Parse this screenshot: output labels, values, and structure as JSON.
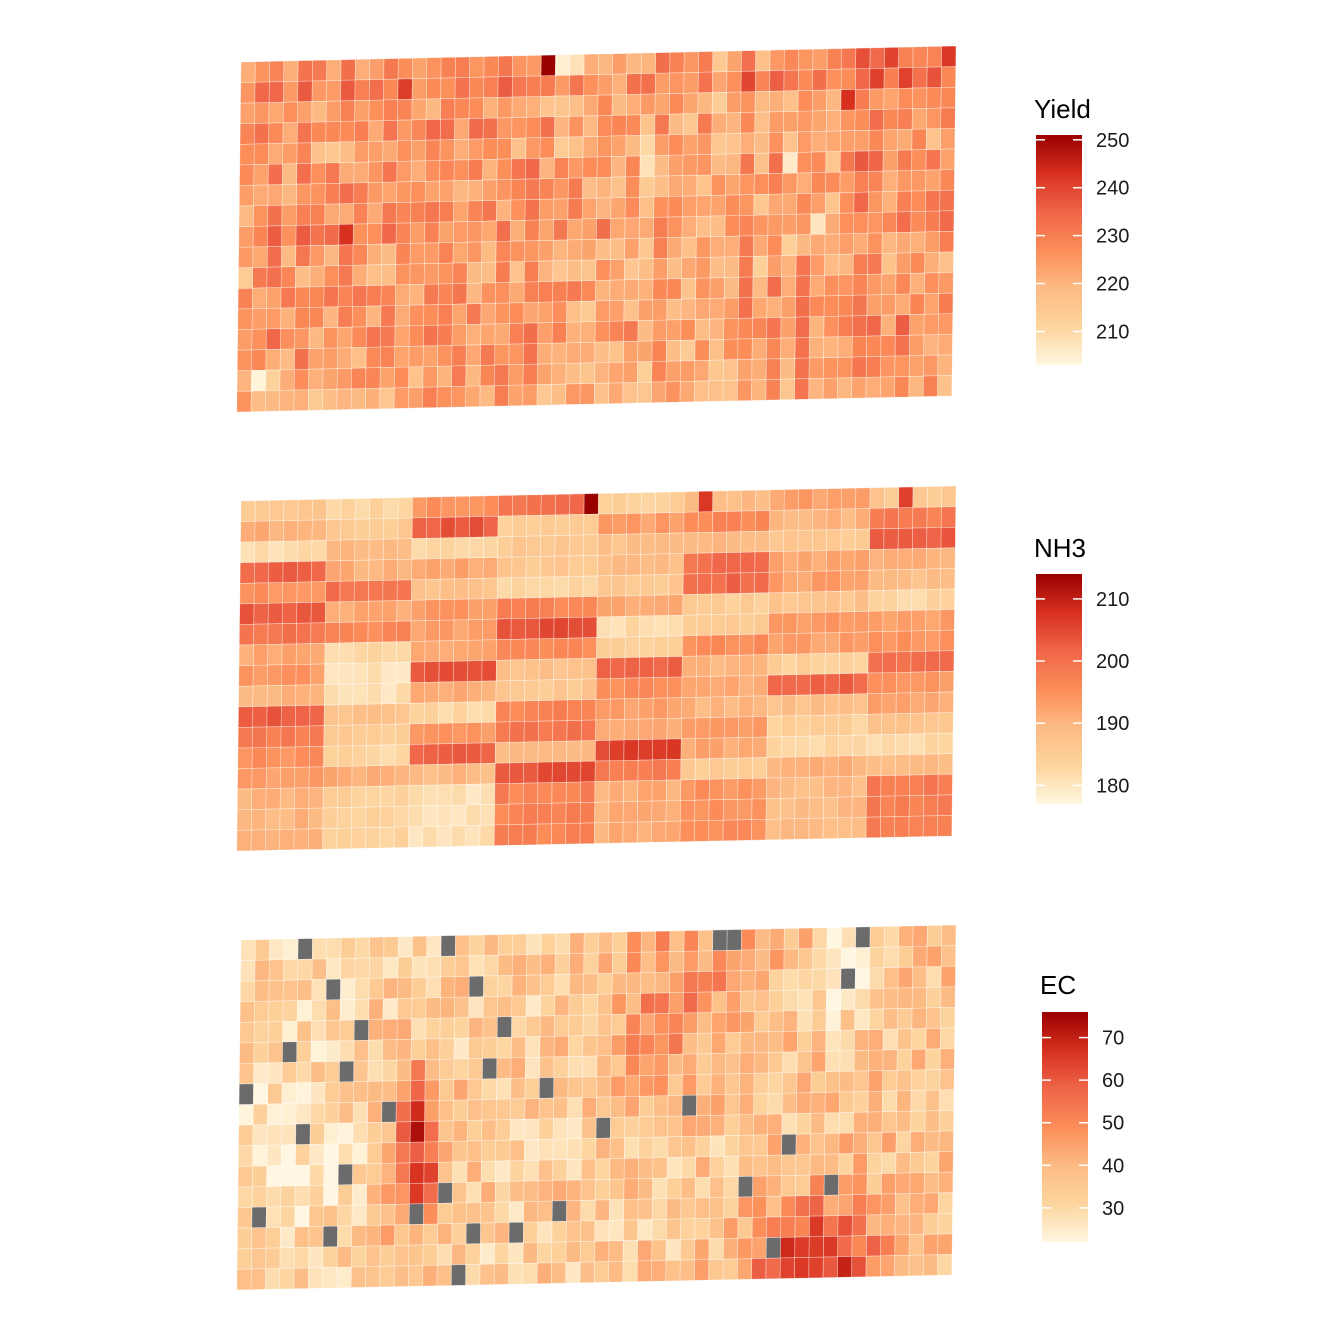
{
  "palette": {
    "stops": [
      "#fff7e1",
      "#fdd49e",
      "#fdbb84",
      "#fc8d59",
      "#ef6548",
      "#d7301f",
      "#990000"
    ],
    "missing": "#6b6b6b",
    "cell_border": "#ffffff"
  },
  "chart_data": [
    {
      "type": "heatmap",
      "title": "Yield",
      "legend_title": "Yield",
      "legend_placement": "right",
      "grid": false,
      "nrows": 17,
      "ncols": 50,
      "limits": [
        203,
        251
      ],
      "ticks": [
        210,
        220,
        230,
        240,
        250
      ],
      "tick_labels": [
        "210",
        "220",
        "230",
        "240",
        "250"
      ],
      "seed": 11,
      "row_pattern": [
        227,
        231,
        224,
        227,
        222,
        225,
        225,
        225,
        228,
        223,
        222,
        225,
        224,
        226,
        224,
        224,
        222
      ],
      "col_pattern": [
        -2,
        2,
        4,
        0,
        2,
        -1,
        0,
        3,
        0,
        1,
        0,
        3,
        -2,
        1,
        2,
        1,
        0,
        1,
        2,
        0,
        3,
        -1,
        -2,
        -1,
        -3,
        -2,
        -4,
        -1,
        -5,
        0,
        -2,
        -5,
        -3,
        -6,
        -2,
        2,
        -3,
        2,
        -4,
        3,
        0,
        -3,
        1,
        5,
        4,
        -1,
        3,
        0,
        1,
        1
      ],
      "noise": 7,
      "special_cells": [
        {
          "row": 0,
          "col": 21,
          "value": 251
        },
        {
          "row": 0,
          "col": 22,
          "value": 205
        },
        {
          "row": 0,
          "col": 23,
          "value": 208
        },
        {
          "row": 0,
          "col": 45,
          "value": 240
        },
        {
          "row": 0,
          "col": 50,
          "value": 242
        },
        {
          "row": 2,
          "col": 42,
          "value": 243
        },
        {
          "row": 5,
          "col": 38,
          "value": 206
        },
        {
          "row": 5,
          "col": 28,
          "value": 208
        },
        {
          "row": 8,
          "col": 40,
          "value": 207
        },
        {
          "row": 8,
          "col": 7,
          "value": 243
        },
        {
          "row": 15,
          "col": 1,
          "value": 204
        },
        {
          "row": 15,
          "col": 2,
          "value": 212
        }
      ]
    },
    {
      "type": "heatmap",
      "title": "NH3",
      "legend_title": "NH3",
      "legend_placement": "right",
      "grid": false,
      "nrows": 17,
      "ncols": 50,
      "limits": [
        177,
        214
      ],
      "ticks": [
        180,
        190,
        200,
        210
      ],
      "tick_labels": [
        "180",
        "190",
        "200",
        "210"
      ],
      "seed": 23,
      "blocks": [
        [
          186,
          183,
          195,
          200,
          184,
          189,
          193,
          186,
          200
        ],
        [
          191,
          186,
          203,
          185,
          193,
          196,
          190,
          198,
          195
        ],
        [
          182,
          190,
          182,
          186,
          188,
          189,
          186,
          203,
          196
        ],
        [
          202,
          191,
          192,
          186,
          189,
          200,
          192,
          191,
          191
        ],
        [
          195,
          200,
          188,
          183,
          186,
          201,
          193,
          188,
          185
        ],
        [
          203,
          192,
          194,
          197,
          192,
          185,
          187,
          183,
          194
        ],
        [
          199,
          196,
          193,
          204,
          182,
          186,
          194,
          193,
          200
        ],
        [
          192,
          182,
          192,
          196,
          184,
          196,
          193,
          195,
          195
        ],
        [
          194,
          181,
          204,
          188,
          202,
          190,
          184,
          201,
          184
        ],
        [
          190,
          181,
          191,
          186,
          195,
          191,
          202,
          194,
          186
        ],
        [
          203,
          188,
          183,
          197,
          193,
          190,
          188,
          192,
          198
        ],
        [
          198,
          185,
          194,
          199,
          191,
          194,
          184,
          187,
          196
        ],
        [
          195,
          183,
          202,
          190,
          206,
          192,
          183,
          182,
          201
        ],
        [
          193,
          191,
          189,
          204,
          198,
          185,
          191,
          189,
          186
        ],
        [
          190,
          184,
          181,
          197,
          191,
          195,
          189,
          198,
          192
        ]
      ],
      "block_cols": [
        0,
        6,
        12,
        18,
        25,
        31,
        37,
        44,
        50
      ],
      "special_cells": [
        {
          "row": 0,
          "col": 24,
          "value": 214
        },
        {
          "row": 0,
          "col": 32,
          "value": 207
        },
        {
          "row": 0,
          "col": 46,
          "value": 206
        }
      ]
    },
    {
      "type": "heatmap",
      "title": "EC",
      "legend_title": "EC",
      "legend_placement": "right",
      "grid": false,
      "nrows": 17,
      "ncols": 50,
      "limits": [
        22,
        76
      ],
      "ticks": [
        30,
        40,
        50,
        60,
        70
      ],
      "tick_labels": [
        "30",
        "40",
        "50",
        "60",
        "70"
      ],
      "seed": 37,
      "base": 37,
      "noise": 9,
      "col_gradient": [
        -5,
        0
      ],
      "hotspots": [
        {
          "row": 10,
          "col": 12,
          "amp": 34,
          "sr": 2.8,
          "sc": 1.4
        },
        {
          "row": 16,
          "col": 40,
          "amp": 34,
          "sr": 2.2,
          "sc": 3.2
        },
        {
          "row": 4,
          "col": 29,
          "amp": 12,
          "sr": 2.5,
          "sc": 2.5
        },
        {
          "row": 0,
          "col": 33,
          "amp": 10,
          "sr": 3.0,
          "sc": 4.0
        },
        {
          "row": 2,
          "col": 41,
          "amp": -14,
          "sr": 1.6,
          "sc": 1.6
        },
        {
          "row": 10,
          "col": 3,
          "amp": -9,
          "sr": 2.5,
          "sc": 2.5
        }
      ],
      "missing_cells": [
        [
          0,
          4
        ],
        [
          0,
          14
        ],
        [
          0,
          33
        ],
        [
          0,
          43
        ],
        [
          1,
          34
        ],
        [
          3,
          6
        ],
        [
          3,
          16
        ],
        [
          4,
          42
        ],
        [
          6,
          8
        ],
        [
          6,
          18
        ],
        [
          8,
          3
        ],
        [
          9,
          7
        ],
        [
          9,
          17
        ],
        [
          10,
          21
        ],
        [
          11,
          0
        ],
        [
          12,
          10
        ],
        [
          12,
          31
        ],
        [
          13,
          25
        ],
        [
          14,
          4
        ],
        [
          15,
          38
        ],
        [
          16,
          7
        ],
        [
          17,
          14
        ],
        [
          17,
          35
        ],
        [
          18,
          41
        ],
        [
          19,
          1
        ],
        [
          19,
          12
        ],
        [
          19,
          22
        ],
        [
          20,
          19
        ],
        [
          21,
          6
        ],
        [
          21,
          16
        ],
        [
          22,
          37
        ],
        [
          23,
          15
        ]
      ]
    }
  ]
}
